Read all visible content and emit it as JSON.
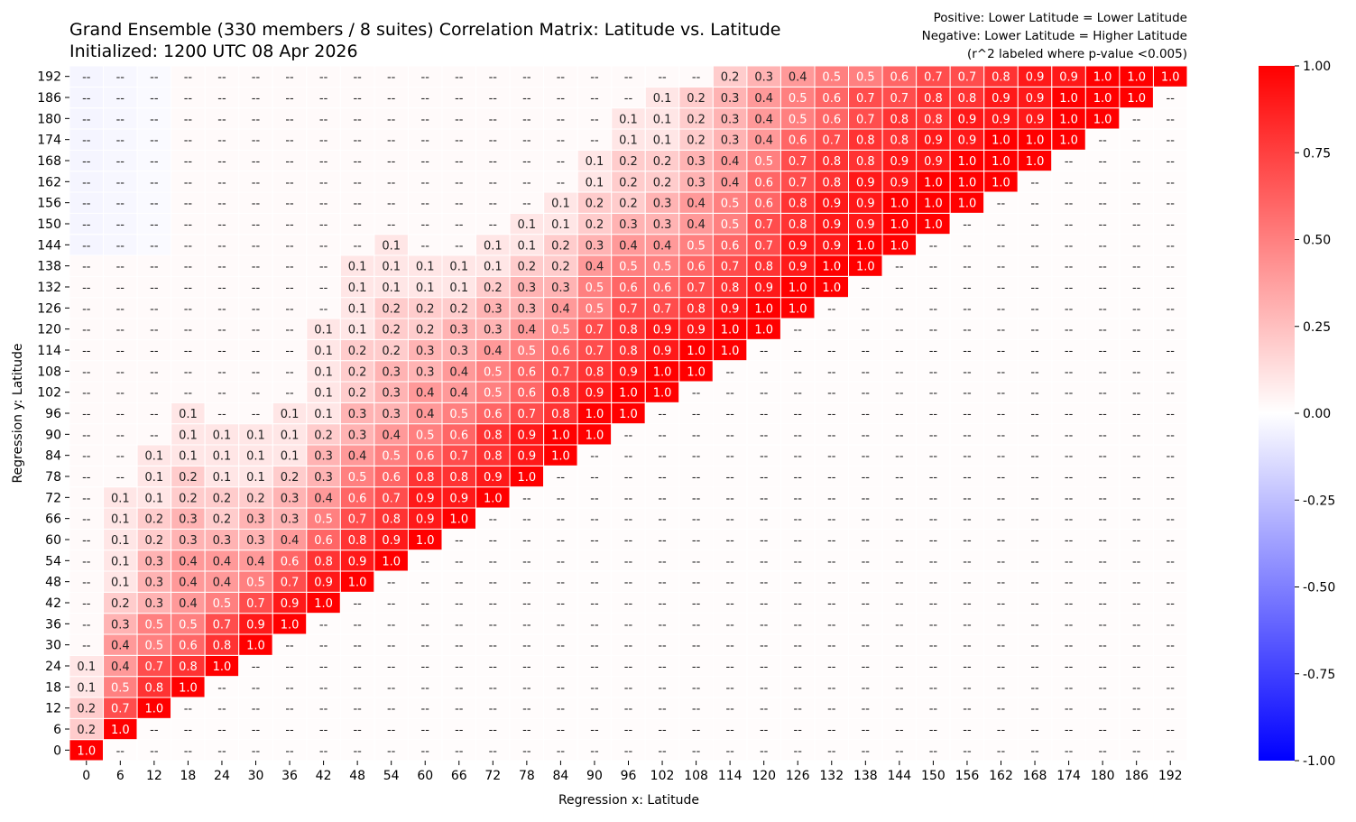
{
  "chart_data": {
    "type": "heatmap",
    "title": "Grand Ensemble (330 members / 8 suites) Correlation Matrix: Latitude vs. Latitude",
    "subtitle": "Initialized: 1200 UTC 08 Apr 2026",
    "notes": [
      "Positive: Lower Latitude = Lower Latitude",
      "Negative: Lower Latitude = Higher Latitude",
      "(r^2 labeled where p-value <0.005)"
    ],
    "xlabel": "Regression x: Latitude",
    "ylabel": "Regression y: Latitude",
    "x_ticks": [
      "0",
      "6",
      "12",
      "18",
      "24",
      "30",
      "36",
      "42",
      "48",
      "54",
      "60",
      "66",
      "72",
      "78",
      "84",
      "90",
      "96",
      "102",
      "108",
      "114",
      "120",
      "126",
      "132",
      "138",
      "144",
      "150",
      "156",
      "162",
      "168",
      "174",
      "180",
      "186",
      "192"
    ],
    "y_ticks": [
      "0",
      "6",
      "12",
      "18",
      "24",
      "30",
      "36",
      "42",
      "48",
      "54",
      "60",
      "66",
      "72",
      "78",
      "84",
      "90",
      "96",
      "102",
      "108",
      "114",
      "120",
      "126",
      "132",
      "138",
      "144",
      "150",
      "156",
      "162",
      "168",
      "174",
      "180",
      "186",
      "192"
    ],
    "colormap": "bwr",
    "colors": {
      "negative": "#0000ff",
      "zero": "#ffffff",
      "positive": "#ff0000"
    },
    "colorbar": {
      "range": [
        -1.0,
        1.0
      ],
      "ticks": [
        "1.00",
        "0.75",
        "0.50",
        "0.25",
        "0.00",
        "-0.25",
        "-0.50",
        "-0.75",
        "-1.00"
      ]
    },
    "empty_label": "--",
    "rows": {
      "0": [
        "1.0"
      ],
      "6": [
        "0.2",
        "1.0"
      ],
      "12": [
        "0.2",
        "0.7",
        "1.0"
      ],
      "18": [
        "0.1",
        "0.5",
        "0.8",
        "1.0"
      ],
      "24": [
        "0.1",
        "0.4",
        "0.7",
        "0.8",
        "1.0"
      ],
      "30": [
        "--",
        "0.4",
        "0.5",
        "0.6",
        "0.8",
        "1.0"
      ],
      "36": [
        "--",
        "0.3",
        "0.5",
        "0.5",
        "0.7",
        "0.9",
        "1.0"
      ],
      "42": [
        "--",
        "0.2",
        "0.3",
        "0.4",
        "0.5",
        "0.7",
        "0.9",
        "1.0"
      ],
      "48": [
        "--",
        "0.1",
        "0.3",
        "0.4",
        "0.4",
        "0.5",
        "0.7",
        "0.9",
        "1.0"
      ],
      "54": [
        "--",
        "0.1",
        "0.3",
        "0.4",
        "0.4",
        "0.4",
        "0.6",
        "0.8",
        "0.9",
        "1.0"
      ],
      "60": [
        "--",
        "0.1",
        "0.2",
        "0.3",
        "0.3",
        "0.3",
        "0.4",
        "0.6",
        "0.8",
        "0.9",
        "1.0"
      ],
      "66": [
        "--",
        "0.1",
        "0.2",
        "0.3",
        "0.2",
        "0.3",
        "0.3",
        "0.5",
        "0.7",
        "0.8",
        "0.9",
        "1.0"
      ],
      "72": [
        "--",
        "0.1",
        "0.1",
        "0.2",
        "0.2",
        "0.2",
        "0.3",
        "0.4",
        "0.6",
        "0.7",
        "0.9",
        "0.9",
        "1.0"
      ],
      "78": [
        "--",
        "--",
        "0.1",
        "0.2",
        "0.1",
        "0.1",
        "0.2",
        "0.3",
        "0.5",
        "0.6",
        "0.8",
        "0.8",
        "0.9",
        "1.0"
      ],
      "84": [
        "--",
        "--",
        "0.1",
        "0.1",
        "0.1",
        "0.1",
        "0.1",
        "0.3",
        "0.4",
        "0.5",
        "0.6",
        "0.7",
        "0.8",
        "0.9",
        "1.0"
      ],
      "90": [
        "--",
        "--",
        "--",
        "0.1",
        "0.1",
        "0.1",
        "0.1",
        "0.2",
        "0.3",
        "0.4",
        "0.5",
        "0.6",
        "0.8",
        "0.9",
        "1.0",
        "1.0"
      ],
      "96": [
        "--",
        "--",
        "--",
        "0.1",
        "--",
        "--",
        "0.1",
        "0.1",
        "0.3",
        "0.3",
        "0.4",
        "0.5",
        "0.6",
        "0.7",
        "0.8",
        "1.0",
        "1.0"
      ],
      "102": [
        "--",
        "--",
        "--",
        "--",
        "--",
        "--",
        "--",
        "0.1",
        "0.2",
        "0.3",
        "0.4",
        "0.4",
        "0.5",
        "0.6",
        "0.8",
        "0.9",
        "1.0",
        "1.0"
      ],
      "108": [
        "--",
        "--",
        "--",
        "--",
        "--",
        "--",
        "--",
        "0.1",
        "0.2",
        "0.3",
        "0.3",
        "0.4",
        "0.5",
        "0.6",
        "0.7",
        "0.8",
        "0.9",
        "1.0",
        "1.0"
      ],
      "114": [
        "--",
        "--",
        "--",
        "--",
        "--",
        "--",
        "--",
        "0.1",
        "0.2",
        "0.2",
        "0.3",
        "0.3",
        "0.4",
        "0.5",
        "0.6",
        "0.7",
        "0.8",
        "0.9",
        "1.0",
        "1.0"
      ],
      "120": [
        "--",
        "--",
        "--",
        "--",
        "--",
        "--",
        "--",
        "0.1",
        "0.1",
        "0.2",
        "0.2",
        "0.3",
        "0.3",
        "0.4",
        "0.5",
        "0.7",
        "0.8",
        "0.9",
        "0.9",
        "1.0",
        "1.0"
      ],
      "126": [
        "--",
        "--",
        "--",
        "--",
        "--",
        "--",
        "--",
        "--",
        "0.1",
        "0.2",
        "0.2",
        "0.2",
        "0.3",
        "0.3",
        "0.4",
        "0.5",
        "0.7",
        "0.7",
        "0.8",
        "0.9",
        "1.0",
        "1.0"
      ],
      "132": [
        "--",
        "--",
        "--",
        "--",
        "--",
        "--",
        "--",
        "--",
        "0.1",
        "0.1",
        "0.1",
        "0.1",
        "0.2",
        "0.3",
        "0.3",
        "0.5",
        "0.6",
        "0.6",
        "0.7",
        "0.8",
        "0.9",
        "1.0",
        "1.0"
      ],
      "138": [
        "--",
        "--",
        "--",
        "--",
        "--",
        "--",
        "--",
        "--",
        "0.1",
        "0.1",
        "0.1",
        "0.1",
        "0.1",
        "0.2",
        "0.2",
        "0.4",
        "0.5",
        "0.5",
        "0.6",
        "0.7",
        "0.8",
        "0.9",
        "1.0",
        "1.0"
      ],
      "144": [
        "--",
        "--",
        "--",
        "--",
        "--",
        "--",
        "--",
        "--",
        "--",
        "0.1",
        "--",
        "--",
        "0.1",
        "0.1",
        "0.2",
        "0.3",
        "0.4",
        "0.4",
        "0.5",
        "0.6",
        "0.7",
        "0.9",
        "0.9",
        "1.0",
        "1.0"
      ],
      "150": [
        "--",
        "--",
        "--",
        "--",
        "--",
        "--",
        "--",
        "--",
        "--",
        "--",
        "--",
        "--",
        "--",
        "0.1",
        "0.1",
        "0.2",
        "0.3",
        "0.3",
        "0.4",
        "0.5",
        "0.7",
        "0.8",
        "0.9",
        "0.9",
        "1.0",
        "1.0"
      ],
      "156": [
        "--",
        "--",
        "--",
        "--",
        "--",
        "--",
        "--",
        "--",
        "--",
        "--",
        "--",
        "--",
        "--",
        "--",
        "0.1",
        "0.2",
        "0.2",
        "0.3",
        "0.4",
        "0.5",
        "0.6",
        "0.8",
        "0.9",
        "0.9",
        "1.0",
        "1.0",
        "1.0"
      ],
      "162": [
        "--",
        "--",
        "--",
        "--",
        "--",
        "--",
        "--",
        "--",
        "--",
        "--",
        "--",
        "--",
        "--",
        "--",
        "--",
        "0.1",
        "0.2",
        "0.2",
        "0.3",
        "0.4",
        "0.6",
        "0.7",
        "0.8",
        "0.9",
        "0.9",
        "1.0",
        "1.0",
        "1.0"
      ],
      "168": [
        "--",
        "--",
        "--",
        "--",
        "--",
        "--",
        "--",
        "--",
        "--",
        "--",
        "--",
        "--",
        "--",
        "--",
        "--",
        "0.1",
        "0.2",
        "0.2",
        "0.3",
        "0.4",
        "0.5",
        "0.7",
        "0.8",
        "0.8",
        "0.9",
        "0.9",
        "1.0",
        "1.0",
        "1.0"
      ],
      "174": [
        "--",
        "--",
        "--",
        "--",
        "--",
        "--",
        "--",
        "--",
        "--",
        "--",
        "--",
        "--",
        "--",
        "--",
        "--",
        "--",
        "0.1",
        "0.1",
        "0.2",
        "0.3",
        "0.4",
        "0.6",
        "0.7",
        "0.8",
        "0.8",
        "0.9",
        "0.9",
        "1.0",
        "1.0",
        "1.0"
      ],
      "180": [
        "--",
        "--",
        "--",
        "--",
        "--",
        "--",
        "--",
        "--",
        "--",
        "--",
        "--",
        "--",
        "--",
        "--",
        "--",
        "--",
        "0.1",
        "0.1",
        "0.2",
        "0.3",
        "0.4",
        "0.5",
        "0.6",
        "0.7",
        "0.8",
        "0.8",
        "0.9",
        "0.9",
        "0.9",
        "1.0",
        "1.0"
      ],
      "186": [
        "--",
        "--",
        "--",
        "--",
        "--",
        "--",
        "--",
        "--",
        "--",
        "--",
        "--",
        "--",
        "--",
        "--",
        "--",
        "--",
        "--",
        "0.1",
        "0.2",
        "0.3",
        "0.4",
        "0.5",
        "0.6",
        "0.7",
        "0.7",
        "0.8",
        "0.8",
        "0.9",
        "0.9",
        "1.0",
        "1.0",
        "1.0"
      ],
      "192": [
        "--",
        "--",
        "--",
        "--",
        "--",
        "--",
        "--",
        "--",
        "--",
        "--",
        "--",
        "--",
        "--",
        "--",
        "--",
        "--",
        "--",
        "--",
        "--",
        "0.2",
        "0.3",
        "0.4",
        "0.5",
        "0.5",
        "0.6",
        "0.7",
        "0.7",
        "0.8",
        "0.9",
        "0.9",
        "1.0",
        "1.0",
        "1.0"
      ]
    }
  }
}
